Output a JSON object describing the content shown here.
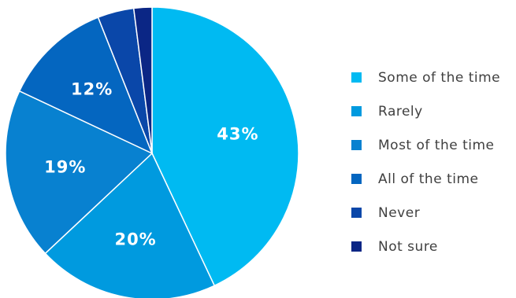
{
  "chart_data": {
    "type": "pie",
    "title": "",
    "series": [
      {
        "name": "Some of the time",
        "value": 43,
        "label": "43%",
        "color": "#00BAF2"
      },
      {
        "name": "Rarely",
        "value": 20,
        "label": "20%",
        "color": "#009ADF"
      },
      {
        "name": "Most of the time",
        "value": 19,
        "label": "19%",
        "color": "#0881D0"
      },
      {
        "name": "All of the time",
        "value": 12,
        "label": "12%",
        "color": "#0466C0"
      },
      {
        "name": "Never",
        "value": 4,
        "label": "",
        "color": "#0A47A9"
      },
      {
        "name": "Not sure",
        "value": 2,
        "label": "",
        "color": "#0B2685"
      }
    ],
    "legend_position": "right",
    "start_angle": "12 o'clock",
    "direction": "clockwise"
  }
}
